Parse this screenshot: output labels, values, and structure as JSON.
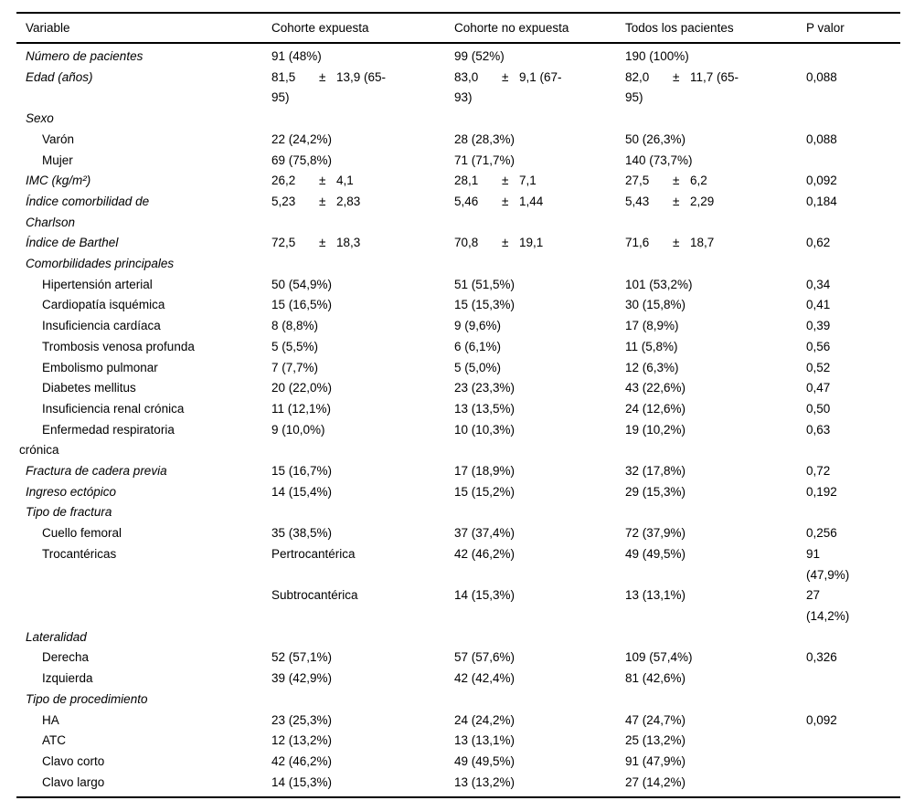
{
  "pm_sign": "±",
  "header": {
    "columns": [
      "Variable",
      "Cohorte expuesta",
      "Cohorte no expuesta",
      "Todos los pacientes",
      "P valor"
    ]
  },
  "rows": [
    {
      "label": "Número de pacientes",
      "variant": "italic",
      "cells": [
        {
          "text": "91 (48%)"
        },
        {
          "text": "99 (52%)"
        },
        {
          "text": "190 (100%)"
        },
        null
      ]
    },
    {
      "label": "Edad (años)",
      "variant": "italic",
      "cells": [
        {
          "v1": "81,5",
          "v2": "13,9 (65-",
          "wrap": "95)"
        },
        {
          "v1": "83,0",
          "v2": "9,1 (67-",
          "wrap": "93)"
        },
        {
          "v1": "82,0",
          "v2": "11,7 (65-",
          "wrap": "95)"
        },
        {
          "text": "0,088"
        }
      ]
    },
    {
      "label": "Sexo",
      "variant": "italic",
      "cells": [
        null,
        null,
        null,
        null
      ]
    },
    {
      "label": "Varón",
      "variant": "indent",
      "cells": [
        {
          "text": "22 (24,2%)"
        },
        {
          "text": "28 (28,3%)"
        },
        {
          "text": "50 (26,3%)"
        },
        {
          "text": "0,088"
        }
      ]
    },
    {
      "label": "Mujer",
      "variant": "indent",
      "cells": [
        {
          "text": "69 (75,8%)"
        },
        {
          "text": "71 (71,7%)"
        },
        {
          "text": "140 (73,7%)"
        },
        null
      ]
    },
    {
      "label": "IMC (kg/m²)",
      "variant": "italic",
      "cells": [
        {
          "v1": "26,2",
          "v2": "4,1"
        },
        {
          "v1": "28,1",
          "v2": "7,1"
        },
        {
          "v1": "27,5",
          "v2": "6,2"
        },
        {
          "text": "0,092"
        }
      ]
    },
    {
      "label": "Índice comorbilidad de",
      "label2": "Charlson",
      "variant": "italic",
      "cells": [
        {
          "v1": "5,23",
          "v2": "2,83"
        },
        {
          "v1": "5,46",
          "v2": "1,44"
        },
        {
          "v1": "5,43",
          "v2": "2,29"
        },
        {
          "text": "0,184"
        }
      ]
    },
    {
      "label": "Índice de Barthel",
      "variant": "italic",
      "cells": [
        {
          "v1": "72,5",
          "v2": "18,3"
        },
        {
          "v1": "70,8",
          "v2": "19,1"
        },
        {
          "v1": "71,6",
          "v2": "18,7"
        },
        {
          "text": "0,62"
        }
      ]
    },
    {
      "label": "Comorbilidades principales",
      "variant": "italic",
      "cells": [
        null,
        null,
        null,
        null
      ]
    },
    {
      "label": "Hipertensión arterial",
      "variant": "indent",
      "cells": [
        {
          "text": "50 (54,9%)"
        },
        {
          "text": "51 (51,5%)"
        },
        {
          "text": "101 (53,2%)"
        },
        {
          "text": "0,34"
        }
      ]
    },
    {
      "label": "Cardiopatía isquémica",
      "variant": "indent",
      "cells": [
        {
          "text": "15 (16,5%)"
        },
        {
          "text": "15 (15,3%)"
        },
        {
          "text": "30 (15,8%)"
        },
        {
          "text": "0,41"
        }
      ]
    },
    {
      "label": "Insuficiencia cardíaca",
      "variant": "indent",
      "cells": [
        {
          "text": "8 (8,8%)"
        },
        {
          "text": "9 (9,6%)"
        },
        {
          "text": "17 (8,9%)"
        },
        {
          "text": "0,39"
        }
      ]
    },
    {
      "label": "Trombosis venosa profunda",
      "variant": "indent",
      "cells": [
        {
          "text": "5 (5,5%)"
        },
        {
          "text": "6 (6,1%)"
        },
        {
          "text": "11 (5,8%)"
        },
        {
          "text": "0,56"
        }
      ]
    },
    {
      "label": "Embolismo pulmonar",
      "variant": "indent",
      "cells": [
        {
          "text": "7 (7,7%)"
        },
        {
          "text": "5 (5,0%)"
        },
        {
          "text": "12 (6,3%)"
        },
        {
          "text": "0,52"
        }
      ]
    },
    {
      "label": "Diabetes mellitus",
      "variant": "indent",
      "cells": [
        {
          "text": "20 (22,0%)"
        },
        {
          "text": "23 (23,3%)"
        },
        {
          "text": "43 (22,6%)"
        },
        {
          "text": "0,47"
        }
      ]
    },
    {
      "label": "Insuficiencia renal crónica",
      "variant": "indent",
      "cells": [
        {
          "text": "11 (12,1%)"
        },
        {
          "text": "13 (13,5%)"
        },
        {
          "text": "24 (12,6%)"
        },
        {
          "text": "0,50"
        }
      ]
    },
    {
      "label": "Enfermedad respiratoria",
      "label2": "crónica",
      "variant": "hanging",
      "cells": [
        {
          "text": "9 (10,0%)"
        },
        {
          "text": "10 (10,3%)"
        },
        {
          "text": "19 (10,2%)"
        },
        {
          "text": "0,63"
        }
      ]
    },
    {
      "label": "Fractura de cadera previa",
      "variant": "italic",
      "cells": [
        {
          "text": "15 (16,7%)"
        },
        {
          "text": "17 (18,9%)"
        },
        {
          "text": "32 (17,8%)"
        },
        {
          "text": "0,72"
        }
      ]
    },
    {
      "label": "Ingreso ectópico",
      "variant": "italic",
      "cells": [
        {
          "text": "14 (15,4%)"
        },
        {
          "text": "15 (15,2%)"
        },
        {
          "text": "29 (15,3%)"
        },
        {
          "text": "0,192"
        }
      ]
    },
    {
      "label": "Tipo de fractura",
      "variant": "italic",
      "cells": [
        null,
        null,
        null,
        null
      ]
    },
    {
      "label": "Cuello femoral",
      "variant": "indent",
      "cells": [
        {
          "text": "35 (38,5%)"
        },
        {
          "text": "37 (37,4%)"
        },
        {
          "text": "72 (37,9%)"
        },
        {
          "text": "0,256"
        }
      ]
    },
    {
      "label": "Trocantéricas",
      "variant": "indent",
      "cells": [
        {
          "text": "Pertrocantérica"
        },
        {
          "text": "42 (46,2%)"
        },
        {
          "text": "49 (49,5%)"
        },
        {
          "text": "91",
          "wrap": "(47,9%)"
        }
      ]
    },
    {
      "label": "",
      "variant": "indent",
      "cells": [
        {
          "text": "Subtrocantérica"
        },
        {
          "text": "14 (15,3%)"
        },
        {
          "text": "13 (13,1%)"
        },
        {
          "text": "27",
          "wrap": "(14,2%)"
        }
      ]
    },
    {
      "label": "Lateralidad",
      "variant": "italic",
      "cells": [
        null,
        null,
        null,
        null
      ]
    },
    {
      "label": "Derecha",
      "variant": "indent",
      "cells": [
        {
          "text": "52 (57,1%)"
        },
        {
          "text": "57 (57,6%)"
        },
        {
          "text": "109 (57,4%)"
        },
        {
          "text": "0,326"
        }
      ]
    },
    {
      "label": "Izquierda",
      "variant": "indent",
      "cells": [
        {
          "text": "39 (42,9%)"
        },
        {
          "text": "42 (42,4%)"
        },
        {
          "text": "81 (42,6%)"
        },
        null
      ]
    },
    {
      "label": "Tipo de procedimiento",
      "variant": "italic",
      "cells": [
        null,
        null,
        null,
        null
      ]
    },
    {
      "label": "HA",
      "variant": "indent",
      "cells": [
        {
          "text": "23 (25,3%)"
        },
        {
          "text": "24 (24,2%)"
        },
        {
          "text": "47 (24,7%)"
        },
        {
          "text": "0,092"
        }
      ]
    },
    {
      "label": "ATC",
      "variant": "indent",
      "cells": [
        {
          "text": "12 (13,2%)"
        },
        {
          "text": "13 (13,1%)"
        },
        {
          "text": "25 (13,2%)"
        },
        null
      ]
    },
    {
      "label": "Clavo corto",
      "variant": "indent",
      "cells": [
        {
          "text": "42 (46,2%)"
        },
        {
          "text": "49 (49,5%)"
        },
        {
          "text": "91 (47,9%)"
        },
        null
      ]
    },
    {
      "label": "Clavo largo",
      "variant": "indent",
      "cells": [
        {
          "text": "14 (15,3%)"
        },
        {
          "text": "13 (13,2%)"
        },
        {
          "text": "27 (14,2%)"
        },
        null
      ]
    }
  ]
}
